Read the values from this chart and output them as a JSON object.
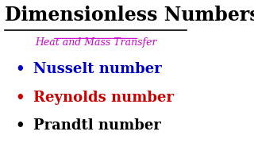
{
  "title": "Dimensionless Numbers",
  "title_color": "#000000",
  "subtitle": "Heat and Mass Transfer",
  "subtitle_color": "#cc00cc",
  "background_color": "#ffffff",
  "items": [
    {
      "text": "Nusselt number",
      "color": "#0000cc"
    },
    {
      "text": "Reynolds number",
      "color": "#cc0000"
    },
    {
      "text": "Prandtl number",
      "color": "#000000"
    }
  ],
  "bullet": "•",
  "title_fontsize": 17,
  "subtitle_fontsize": 9,
  "item_fontsize": 13
}
